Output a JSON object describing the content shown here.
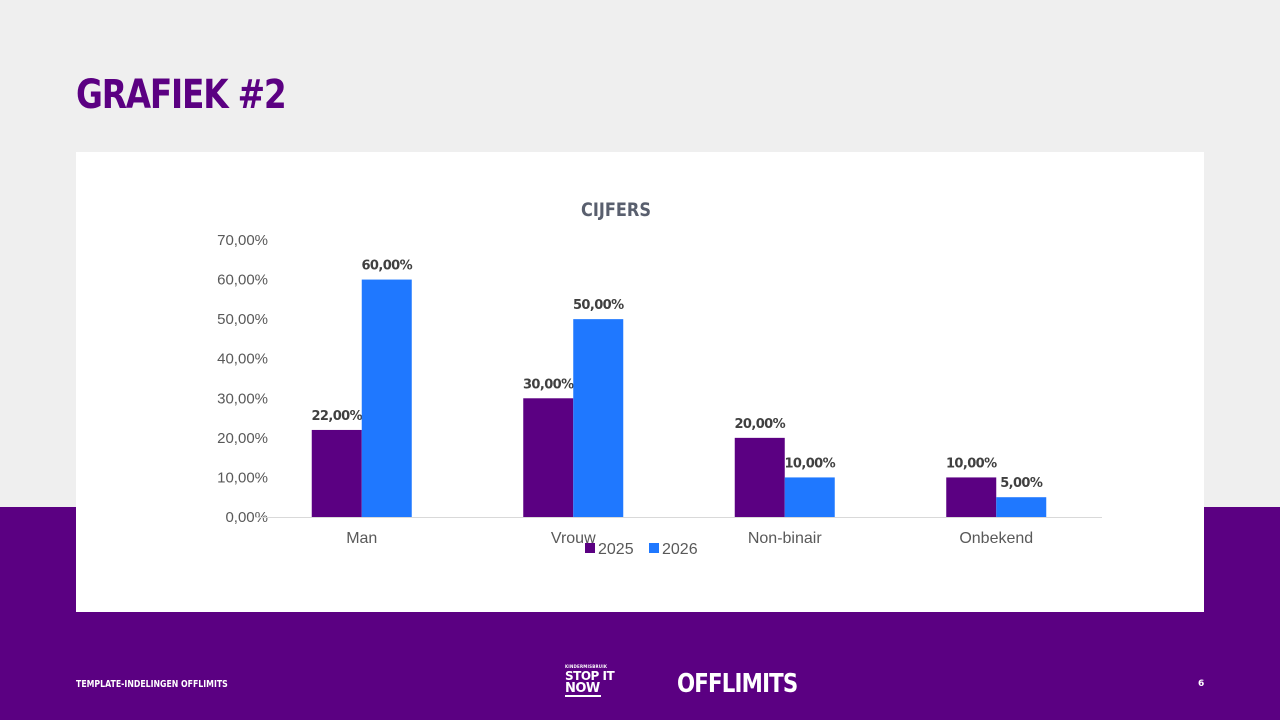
{
  "slide": {
    "title": "GRAFIEK #2",
    "footer_left": "TEMPLATE-INDELINGEN OFFLIMITS",
    "logo_stop": {
      "line1": "KINDERMISBRUIK",
      "line2": "STOP IT",
      "line3": "NOW"
    },
    "logo_offlimits": "OFFLIMITS",
    "page_number": "6"
  },
  "colors": {
    "primary_purple": "#5b0082",
    "series_2025": "#5b0082",
    "series_2026": "#1f78ff",
    "background": "#efefef",
    "chart_background": "#ffffff"
  },
  "chart_data": {
    "type": "bar",
    "title": "CIJFERS",
    "categories": [
      "Man",
      "Vrouw",
      "Non-binair",
      "Onbekend"
    ],
    "series": [
      {
        "name": "2025",
        "values": [
          22,
          30,
          20,
          10
        ],
        "labels": [
          "22,00%",
          "30,00%",
          "20,00%",
          "10,00%"
        ]
      },
      {
        "name": "2026",
        "values": [
          60,
          50,
          10,
          5
        ],
        "labels": [
          "60,00%",
          "50,00%",
          "10,00%",
          "5,00%"
        ]
      }
    ],
    "ylim": [
      0,
      70
    ],
    "yticks": [
      0,
      10,
      20,
      30,
      40,
      50,
      60,
      70
    ],
    "ytick_labels": [
      "0,00%",
      "10,00%",
      "20,00%",
      "30,00%",
      "40,00%",
      "50,00%",
      "60,00%",
      "70,00%"
    ],
    "grid": false,
    "legend": "bottom",
    "xlabel": "",
    "ylabel": ""
  }
}
